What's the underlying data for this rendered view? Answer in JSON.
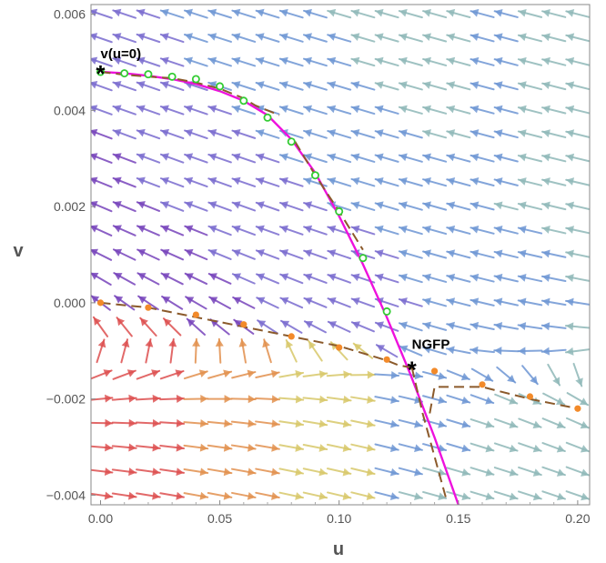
{
  "chart_data": {
    "type": "scatter",
    "subtype": "vector-field-phase-portrait",
    "title": "",
    "xlabel": "u",
    "ylabel": "v",
    "xlim": [
      -0.004,
      0.205
    ],
    "ylim": [
      -0.0042,
      0.0062
    ],
    "x_ticks": [
      0.0,
      0.05,
      0.1,
      0.15,
      0.2
    ],
    "x_tick_labels": [
      "0.00",
      "0.05",
      "0.10",
      "0.15",
      "0.20"
    ],
    "y_ticks": [
      -0.004,
      -0.002,
      0.0,
      0.002,
      0.004,
      0.006
    ],
    "y_tick_labels": [
      "−0.004",
      "−0.002",
      "0.000",
      "0.002",
      "0.004",
      "0.006"
    ],
    "grid": false,
    "frame": true,
    "annotations": [
      {
        "text": "v(u=0)",
        "x": 0.0,
        "y": 0.0048
      },
      {
        "text": "NGFP",
        "x": 0.1305,
        "y": -0.00135
      }
    ],
    "special_points": [
      {
        "name": "v(u=0)",
        "marker": "asterisk",
        "x": 0.0,
        "y": 0.0048
      },
      {
        "name": "NGFP",
        "marker": "asterisk",
        "x": 0.1305,
        "y": -0.00135
      }
    ],
    "magenta_curve": {
      "color": "#ee11dd",
      "x": [
        0.0,
        0.01,
        0.02,
        0.03,
        0.04,
        0.05,
        0.06,
        0.07,
        0.08,
        0.09,
        0.1,
        0.11,
        0.12,
        0.13,
        0.14,
        0.15
      ],
      "y": [
        0.0048,
        0.00477,
        0.00472,
        0.00465,
        0.00455,
        0.0044,
        0.0042,
        0.0039,
        0.0034,
        0.0027,
        0.0018,
        0.0008,
        -0.0003,
        -0.0015,
        -0.0028,
        -0.0042
      ]
    },
    "green_points": {
      "color": "#33cc33",
      "x": [
        0.0,
        0.01,
        0.02,
        0.03,
        0.04,
        0.05,
        0.06,
        0.07,
        0.08,
        0.09,
        0.1,
        0.11,
        0.12
      ],
      "y": [
        0.0048,
        0.00477,
        0.00475,
        0.0047,
        0.00465,
        0.0045,
        0.0042,
        0.00385,
        0.00335,
        0.00265,
        0.0019,
        0.00093,
        -0.00018
      ]
    },
    "brown_dashed_curves": {
      "color": "#8b5a2b",
      "curves": [
        {
          "x": [
            0.0,
            0.01,
            0.02,
            0.03,
            0.04,
            0.05,
            0.06,
            0.065,
            0.075
          ],
          "y": [
            0.0048,
            0.00474,
            0.0047,
            0.00467,
            0.00458,
            0.00445,
            0.00425,
            0.0041,
            0.0039
          ]
        },
        {
          "x": [
            0.0,
            0.02,
            0.04,
            0.06,
            0.08,
            0.1,
            0.12,
            0.125,
            0.1305
          ],
          "y": [
            0.0,
            -0.0001,
            -0.0003,
            -0.0005,
            -0.0007,
            -0.0009,
            -0.0012,
            -0.0013,
            -0.00135
          ]
        },
        {
          "x": [
            0.138,
            0.14,
            0.16,
            0.18,
            0.2
          ],
          "y": [
            -0.0023,
            -0.00175,
            -0.00175,
            -0.002,
            -0.0022
          ]
        },
        {
          "x": [
            0.0815,
            0.09,
            0.1,
            0.11
          ],
          "y": [
            0.00335,
            0.00265,
            0.0019,
            0.0011
          ]
        },
        {
          "x": [
            0.1305,
            0.135,
            0.14,
            0.145
          ],
          "y": [
            -0.00135,
            -0.0023,
            -0.0032,
            -0.0041
          ]
        }
      ]
    },
    "orange_points": {
      "color": "#f28a2a",
      "x": [
        0.0,
        0.02,
        0.04,
        0.06,
        0.08,
        0.1,
        0.12,
        0.14,
        0.16,
        0.18,
        0.2
      ],
      "y": [
        0.0,
        -0.0001,
        -0.00025,
        -0.00045,
        -0.0007,
        -0.00093,
        -0.00118,
        -0.00142,
        -0.0017,
        -0.00195,
        -0.0022
      ]
    },
    "vector_field": {
      "x_start": 0.0,
      "x_step": 0.01,
      "nx": 21,
      "y_start": -0.004,
      "y_step": 0.0005,
      "ny": 21,
      "palette": [
        "#7744bb",
        "#7a6ccf",
        "#6e96d4",
        "#8fb8b8",
        "#d8c86a",
        "#e2904e",
        "#dd5050"
      ]
    }
  }
}
